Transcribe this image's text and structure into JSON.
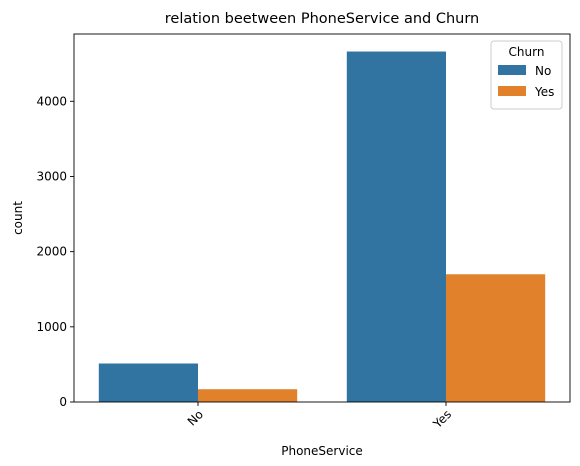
{
  "chart_data": {
    "type": "bar",
    "title": "relation beetween PhoneService and Churn",
    "xlabel": "PhoneService",
    "ylabel": "count",
    "categories": [
      "No",
      "Yes"
    ],
    "series": [
      {
        "name": "No",
        "values": [
          512,
          4662
        ],
        "color": "#3274a1"
      },
      {
        "name": "Yes",
        "values": [
          170,
          1699
        ],
        "color": "#e1812c"
      }
    ],
    "ylim": [
      0,
      4895
    ],
    "yticks": [
      0,
      1000,
      2000,
      3000,
      4000
    ],
    "ytick_labels": [
      "0",
      "1000",
      "2000",
      "3000",
      "4000"
    ],
    "legend": {
      "title": "Churn",
      "placement": "top-right"
    },
    "grid": false
  }
}
